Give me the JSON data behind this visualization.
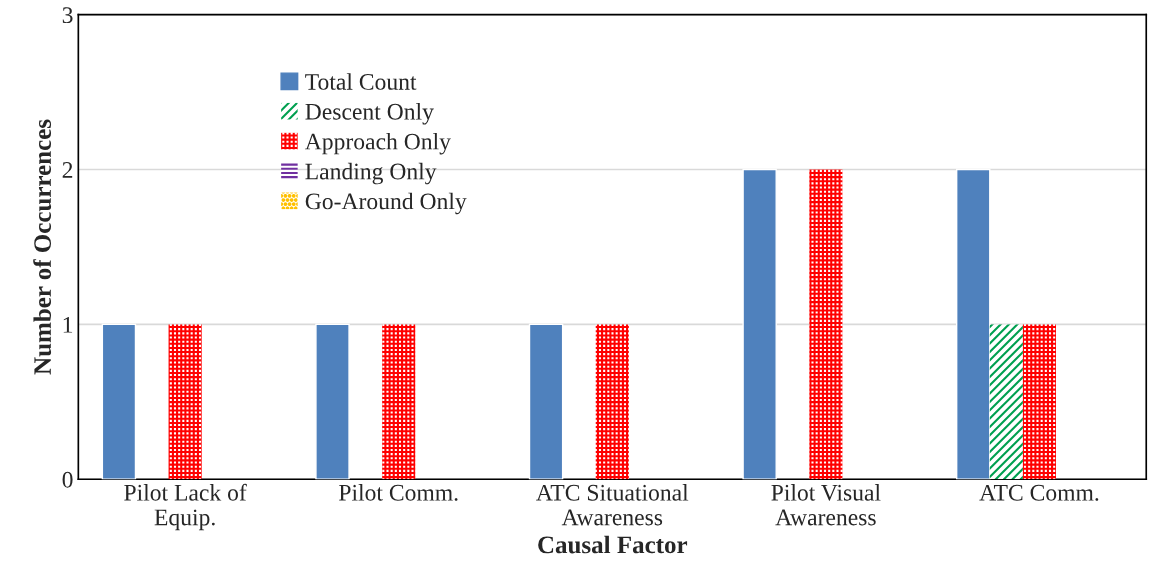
{
  "chart_data": {
    "type": "bar",
    "xlabel": "Causal Factor",
    "ylabel": "Number of Occurrences",
    "categories": [
      "Pilot Lack of\nEquip.",
      "Pilot Comm.",
      "ATC Situational\nAwareness",
      "Pilot Visual\nAwareness",
      "ATC Comm."
    ],
    "series": [
      {
        "name": "Total Count",
        "color": "#4f81bd",
        "values": [
          1,
          1,
          1,
          2,
          2
        ]
      },
      {
        "name": "Descent Only",
        "color": "#00a050",
        "values": [
          0,
          0,
          0,
          0,
          1
        ]
      },
      {
        "name": "Approach Only",
        "color": "#ff0000",
        "values": [
          1,
          1,
          1,
          2,
          1
        ]
      },
      {
        "name": "Landing Only",
        "color": "#7030a0",
        "values": [
          0,
          0,
          0,
          0,
          0
        ]
      },
      {
        "name": "Go-Around Only",
        "color": "#ffc000",
        "values": [
          0,
          0,
          0,
          0,
          0
        ]
      }
    ],
    "ylim": [
      0,
      3
    ],
    "yticks": [
      0,
      1,
      2,
      3
    ],
    "grid": "y",
    "legend": "top left"
  }
}
